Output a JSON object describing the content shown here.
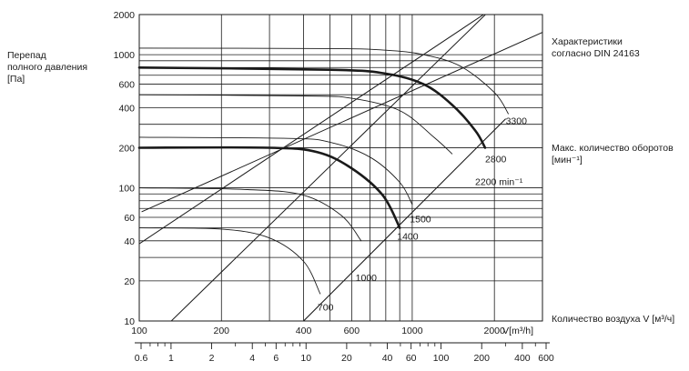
{
  "chart_data": {
    "type": "line",
    "ylabel": "Перепад\nполного давления\n[Па]",
    "right_labels": {
      "characteristics": "Характеристики\nсогласно DIN 24163",
      "max_rpm": "Макс. количество оборотов\n[мин⁻¹]",
      "airflow": "Количество воздуха V [м³/ч]"
    },
    "x_unit_label": "V[m³/h]",
    "x_scale": "log",
    "y_scale": "log",
    "xlim": [
      100,
      3000
    ],
    "ylim": [
      10,
      2000
    ],
    "x_ticks": [
      100,
      200,
      400,
      600,
      1000,
      2000
    ],
    "x_tick_labels": [
      "100",
      "200",
      "400",
      "600",
      "1000",
      "2000"
    ],
    "y_ticks": [
      10,
      20,
      40,
      60,
      100,
      200,
      400,
      600,
      1000,
      2000
    ],
    "y_tick_labels": [
      "10",
      "20",
      "40",
      "60",
      "100",
      "200",
      "400",
      "600",
      "1000",
      "2000"
    ],
    "secondary_scale": {
      "ticks": [
        0.6,
        1,
        2,
        4,
        6,
        10,
        20,
        40,
        60,
        100,
        200,
        400,
        600
      ],
      "tick_labels": [
        "0.6",
        "1",
        "2",
        "4",
        "6",
        "10",
        "20",
        "40",
        "60",
        "100",
        "200",
        "400",
        "600"
      ]
    },
    "series": [
      {
        "name": "3300",
        "bold": false,
        "x": [
          100,
          500,
          800,
          1100,
          1500,
          2000,
          2250
        ],
        "y": [
          1120,
          1110,
          1080,
          1000,
          820,
          520,
          360
        ]
      },
      {
        "name": "2800",
        "bold": true,
        "x": [
          100,
          500,
          800,
          1100,
          1400,
          1700,
          1850
        ],
        "y": [
          800,
          770,
          720,
          600,
          420,
          270,
          200
        ]
      },
      {
        "name": "2200",
        "bold": false,
        "x": [
          100,
          400,
          600,
          900,
          1200,
          1400
        ],
        "y": [
          500,
          490,
          470,
          380,
          240,
          180
        ]
      },
      {
        "name": "1500",
        "bold": false,
        "x": [
          100,
          350,
          500,
          700,
          900,
          1000
        ],
        "y": [
          240,
          235,
          220,
          170,
          110,
          75
        ]
      },
      {
        "name": "1400",
        "bold": true,
        "x": [
          100,
          300,
          450,
          600,
          780,
          900
        ],
        "y": [
          200,
          200,
          185,
          140,
          88,
          50
        ]
      },
      {
        "name": "1000",
        "bold": false,
        "x": [
          100,
          250,
          400,
          550,
          650
        ],
        "y": [
          100,
          97,
          88,
          62,
          40
        ]
      },
      {
        "name": "700",
        "bold": false,
        "x": [
          100,
          200,
          300,
          400,
          460
        ],
        "y": [
          50,
          49,
          42,
          28,
          16
        ]
      }
    ],
    "system_lines": [
      {
        "x": [
          131,
          3000
        ],
        "y": [
          10,
          5230
        ]
      },
      {
        "x": [
          102,
          3000
        ],
        "y": [
          66,
          1470
        ]
      },
      {
        "x": [
          100,
          3000
        ],
        "y": [
          38,
          3940
        ]
      }
    ],
    "rpm_line": {
      "x": [
        400,
        2200
      ],
      "y": [
        10,
        330
      ]
    },
    "rpm_labels": [
      {
        "text": "3300",
        "x": 2200,
        "y": 300
      },
      {
        "text": "2800",
        "x": 1850,
        "y": 155
      },
      {
        "text": "2200 min⁻¹",
        "x": 1700,
        "y": 105
      },
      {
        "text": "1500",
        "x": 980,
        "y": 55
      },
      {
        "text": "1400",
        "x": 880,
        "y": 41
      },
      {
        "text": "1000",
        "x": 620,
        "y": 20
      },
      {
        "text": "700",
        "x": 450,
        "y": 12
      }
    ],
    "extra_grid_x": [
      300,
      500,
      700,
      800,
      900
    ],
    "extra_grid_y": [
      30,
      50,
      70,
      80,
      90,
      300,
      500,
      700,
      800,
      900
    ],
    "grid": true
  },
  "colors": {
    "ink": "#1a1a1a",
    "grid": "#1a1a1a"
  }
}
